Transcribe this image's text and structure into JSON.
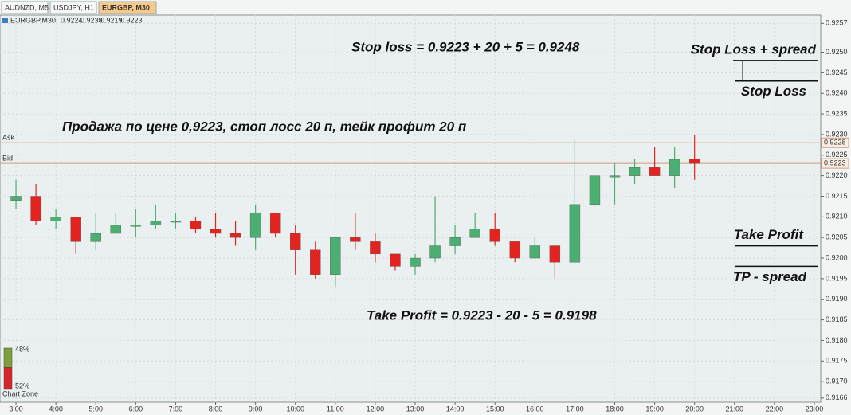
{
  "tabs": [
    "AUDNZD, M5",
    "USDJPY, H1",
    "EURGBP, M30"
  ],
  "active_tab": 2,
  "header": {
    "symbol": "EURGBP,M30",
    "quotes": [
      "0.9224",
      "0.9230",
      "0.9219",
      "0.9223"
    ]
  },
  "chart_data": {
    "type": "candlestick",
    "x": [
      3,
      3.5,
      4,
      4.5,
      5,
      5.5,
      6,
      6.5,
      7,
      7.5,
      8,
      8.5,
      9,
      9.5,
      10,
      10.5,
      11,
      11.5,
      12,
      12.5,
      13,
      13.5,
      14,
      14.5,
      15,
      15.5,
      16,
      16.5,
      17,
      17.5,
      18,
      18.5,
      19,
      19.5,
      20
    ],
    "open": [
      0.9214,
      0.9215,
      0.9209,
      0.921,
      0.9204,
      0.9206,
      0.9208,
      0.9208,
      0.9209,
      0.9209,
      0.9207,
      0.9206,
      0.9205,
      0.9211,
      0.9206,
      0.9202,
      0.9196,
      0.9205,
      0.9204,
      0.9201,
      0.9198,
      0.92,
      0.9203,
      0.9205,
      0.9207,
      0.9204,
      0.92,
      0.9203,
      0.9199,
      0.9213,
      0.922,
      0.922,
      0.9222,
      0.922,
      0.9224
    ],
    "high": [
      0.9219,
      0.9218,
      0.9212,
      0.921,
      0.9211,
      0.9211,
      0.9212,
      0.9213,
      0.9211,
      0.921,
      0.9211,
      0.9209,
      0.9213,
      0.9211,
      0.9208,
      0.9204,
      0.9205,
      0.9211,
      0.9206,
      0.9201,
      0.9201,
      0.9215,
      0.9208,
      0.9211,
      0.9211,
      0.9204,
      0.9205,
      0.9203,
      0.9229,
      0.922,
      0.9223,
      0.9224,
      0.9227,
      0.9227,
      0.923
    ],
    "low": [
      0.9212,
      0.9208,
      0.9207,
      0.9201,
      0.9202,
      0.9206,
      0.9205,
      0.9207,
      0.9207,
      0.9206,
      0.9205,
      0.9203,
      0.9202,
      0.9205,
      0.9196,
      0.9195,
      0.9193,
      0.9202,
      0.9199,
      0.9197,
      0.9196,
      0.9199,
      0.9201,
      0.9205,
      0.9203,
      0.9199,
      0.92,
      0.9195,
      0.9199,
      0.9213,
      0.9213,
      0.9218,
      0.922,
      0.9217,
      0.9219
    ],
    "close": [
      0.9215,
      0.9209,
      0.921,
      0.9204,
      0.9206,
      0.9208,
      0.9208,
      0.9209,
      0.9209,
      0.9207,
      0.9206,
      0.9205,
      0.9211,
      0.9206,
      0.9202,
      0.9196,
      0.9205,
      0.9204,
      0.9201,
      0.9198,
      0.92,
      0.9203,
      0.9205,
      0.9207,
      0.9204,
      0.92,
      0.9203,
      0.9199,
      0.9213,
      0.922,
      0.922,
      0.9222,
      0.922,
      0.9224,
      0.9223
    ],
    "up_color": "#4caf72",
    "down_color": "#e2231f",
    "xlim": [
      2.6,
      23.16
    ],
    "xticks": [
      {
        "value": 3,
        "label": "3:00"
      },
      {
        "value": 4,
        "label": "4:00"
      },
      {
        "value": 5,
        "label": "5:00"
      },
      {
        "value": 6,
        "label": "6:00"
      },
      {
        "value": 7,
        "label": "7:00"
      },
      {
        "value": 8,
        "label": "8:00"
      },
      {
        "value": 9,
        "label": "9:00"
      },
      {
        "value": 10,
        "label": "10:00"
      },
      {
        "value": 11,
        "label": "11:00"
      },
      {
        "value": 12,
        "label": "12:00"
      },
      {
        "value": 13,
        "label": "13:00"
      },
      {
        "value": 14,
        "label": "14:00"
      },
      {
        "value": 15,
        "label": "15:00"
      },
      {
        "value": 16,
        "label": "16:00"
      },
      {
        "value": 17,
        "label": "17:00"
      },
      {
        "value": 18,
        "label": "18:00"
      },
      {
        "value": 19,
        "label": "19:00"
      },
      {
        "value": 20,
        "label": "20:00"
      },
      {
        "value": 21,
        "label": "21:00"
      },
      {
        "value": 22,
        "label": "22:00"
      },
      {
        "value": 23,
        "label": "23:00"
      }
    ],
    "ylim": [
      0.9165,
      0.9259
    ],
    "yticks": [
      0.9166,
      {
        "value": 0.917,
        "label": "0.9170"
      },
      0.9175,
      {
        "value": 0.918,
        "label": "0.9180"
      },
      0.9185,
      {
        "value": 0.919,
        "label": "0.9190"
      },
      0.9195,
      {
        "value": 0.92,
        "label": "0.9200"
      },
      0.9205,
      {
        "value": 0.921,
        "label": "0.9210"
      },
      0.9215,
      {
        "value": 0.922,
        "label": "0.9220"
      },
      0.9225,
      {
        "value": 0.923,
        "label": "0.9230"
      },
      0.9235,
      {
        "value": 0.924,
        "label": "0.9240"
      },
      0.9245,
      {
        "value": 0.925,
        "label": "0.9250"
      },
      0.9257
    ],
    "grid": true,
    "ask": {
      "label": "Ask",
      "value": 0.9228
    },
    "bid": {
      "label": "Bid",
      "value": 0.9223
    },
    "annotations": [
      "Stop loss = 0.9223 + 20 + 5 = 0.9248",
      "Продажа по цене 0,9223, стоп лосс 20 п, тейк профит 20 п",
      "Take Profit = 0.9223 - 20 - 5 = 0.9198"
    ],
    "levels": [
      {
        "label": "Stop Loss + spread",
        "value": 0.9248
      },
      {
        "label": "Stop Loss",
        "value": 0.9243
      },
      {
        "label": "Take Profit",
        "value": 0.9203
      },
      {
        "label": "TP - spread",
        "value": 0.9198
      }
    ]
  },
  "chart_zone": {
    "label": "Chart Zone",
    "values": [
      48,
      52
    ],
    "value_labels": [
      "48%",
      "52%"
    ],
    "colors": [
      "#7f9f3a",
      "#d8242a"
    ]
  }
}
